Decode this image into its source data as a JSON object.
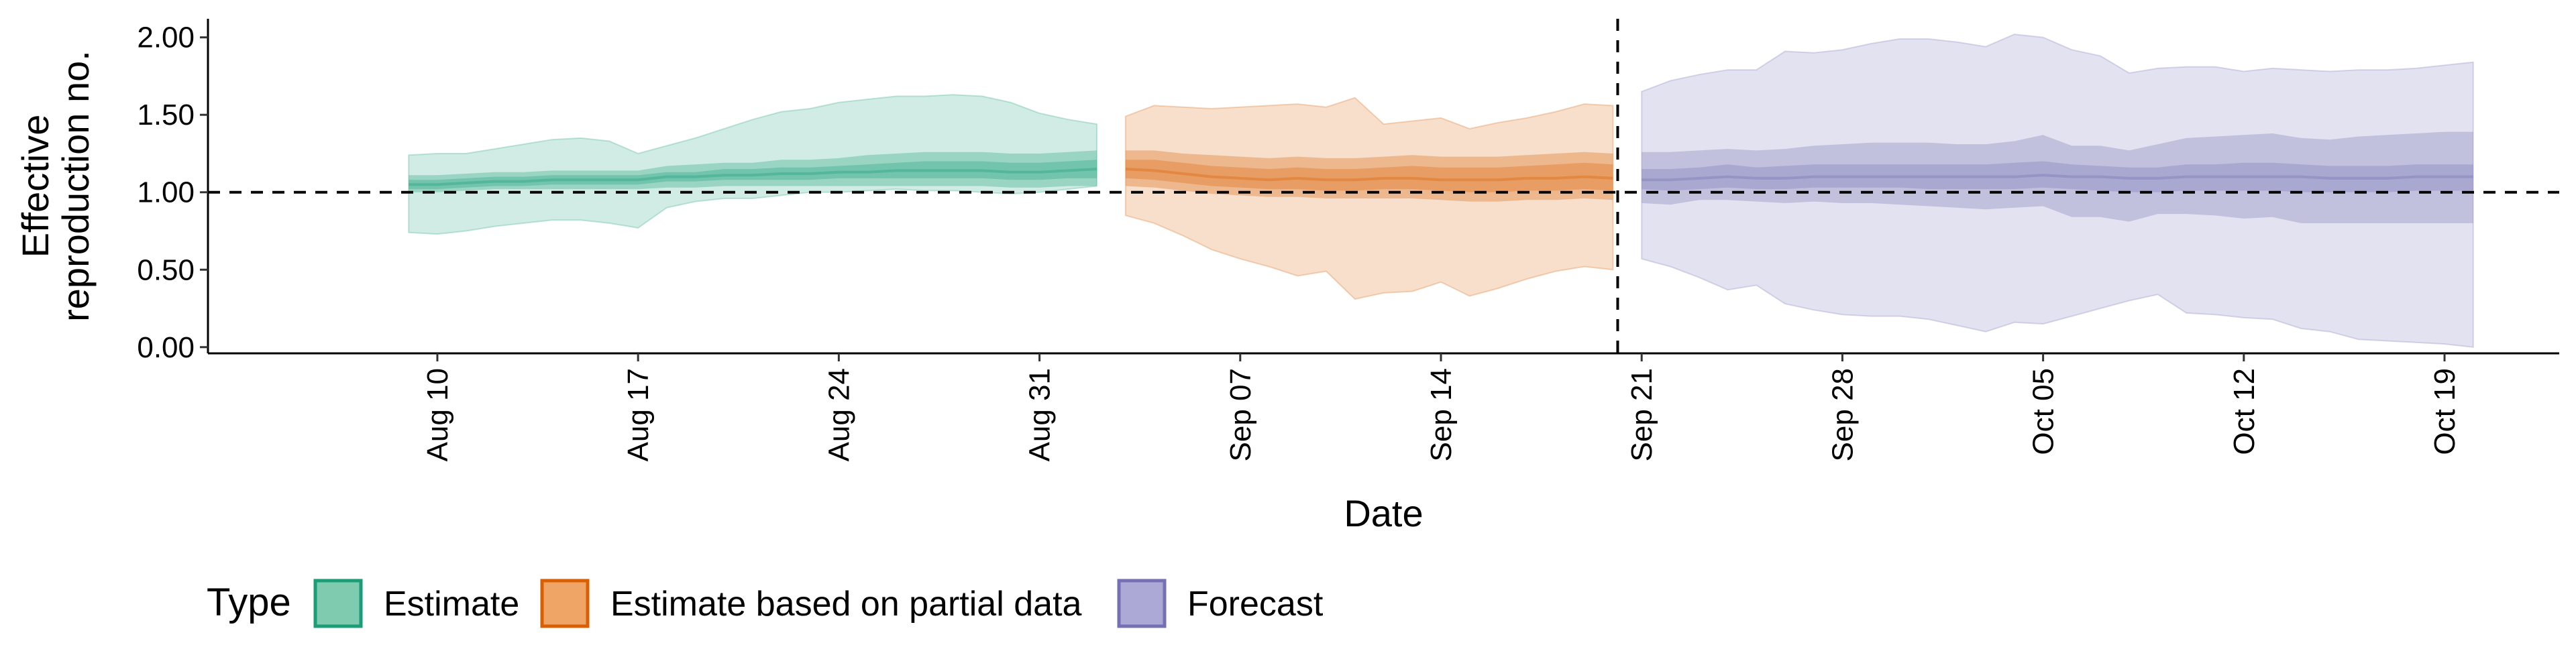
{
  "chart_data": {
    "type": "area",
    "title": "",
    "xlabel": "Date",
    "ylabel": [
      "Effective",
      "reproduction no."
    ],
    "ylim": [
      -0.04,
      2.12
    ],
    "xlim": [
      "2020-08-02",
      "2020-10-23"
    ],
    "yticks": [
      0,
      0.5,
      1,
      1.5,
      2
    ],
    "ytick_labels": [
      "0.00",
      "0.50",
      "1.00",
      "1.50",
      "2.00"
    ],
    "xticks": [
      "2020-08-10",
      "2020-08-17",
      "2020-08-24",
      "2020-08-31",
      "2020-09-07",
      "2020-09-14",
      "2020-09-21",
      "2020-09-28",
      "2020-10-05",
      "2020-10-12",
      "2020-10-19"
    ],
    "xtick_labels": [
      "Aug 10",
      "Aug 17",
      "Aug 24",
      "Aug 31",
      "Sep 07",
      "Sep 14",
      "Sep 21",
      "Sep 28",
      "Oct 05",
      "Oct 12",
      "Oct 19"
    ],
    "reference_line_y": 1.0,
    "reference_line_x": "2020-09-20",
    "legend": {
      "title": "Type",
      "position": "bottom-left",
      "entries": [
        {
          "label": "Estimate",
          "fill": "#7fcbb0",
          "stroke": "#1b9e77"
        },
        {
          "label": "Estimate based on partial data",
          "fill": "#eea566",
          "stroke": "#d95f02"
        },
        {
          "label": "Forecast",
          "fill": "#ada9d6",
          "stroke": "#7570b3"
        }
      ]
    },
    "series": [
      {
        "name": "Estimate",
        "color": "#1b9e77",
        "x": [
          "2020-08-09",
          "2020-08-10",
          "2020-08-11",
          "2020-08-12",
          "2020-08-13",
          "2020-08-14",
          "2020-08-15",
          "2020-08-16",
          "2020-08-17",
          "2020-08-18",
          "2020-08-19",
          "2020-08-20",
          "2020-08-21",
          "2020-08-22",
          "2020-08-23",
          "2020-08-24",
          "2020-08-25",
          "2020-08-26",
          "2020-08-27",
          "2020-08-28",
          "2020-08-29",
          "2020-08-30",
          "2020-08-31",
          "2020-09-01",
          "2020-09-02"
        ],
        "median": [
          1.05,
          1.05,
          1.06,
          1.07,
          1.07,
          1.08,
          1.08,
          1.08,
          1.08,
          1.1,
          1.1,
          1.11,
          1.11,
          1.12,
          1.12,
          1.13,
          1.13,
          1.14,
          1.14,
          1.14,
          1.14,
          1.13,
          1.13,
          1.14,
          1.15
        ],
        "band50": [
          [
            1.02,
            1.08
          ],
          [
            1.02,
            1.08
          ],
          [
            1.03,
            1.09
          ],
          [
            1.04,
            1.1
          ],
          [
            1.04,
            1.1
          ],
          [
            1.05,
            1.11
          ],
          [
            1.05,
            1.11
          ],
          [
            1.05,
            1.11
          ],
          [
            1.05,
            1.11
          ],
          [
            1.07,
            1.13
          ],
          [
            1.07,
            1.13
          ],
          [
            1.08,
            1.15
          ],
          [
            1.08,
            1.15
          ],
          [
            1.08,
            1.16
          ],
          [
            1.08,
            1.16
          ],
          [
            1.09,
            1.17
          ],
          [
            1.09,
            1.18
          ],
          [
            1.09,
            1.19
          ],
          [
            1.09,
            1.2
          ],
          [
            1.09,
            1.2
          ],
          [
            1.09,
            1.2
          ],
          [
            1.08,
            1.19
          ],
          [
            1.08,
            1.19
          ],
          [
            1.09,
            1.2
          ],
          [
            1.09,
            1.21
          ]
        ],
        "band90": [
          [
            1.0,
            1.11
          ],
          [
            1.0,
            1.11
          ],
          [
            1.01,
            1.12
          ],
          [
            1.02,
            1.13
          ],
          [
            1.02,
            1.13
          ],
          [
            1.02,
            1.14
          ],
          [
            1.02,
            1.14
          ],
          [
            1.02,
            1.14
          ],
          [
            1.02,
            1.14
          ],
          [
            1.03,
            1.17
          ],
          [
            1.03,
            1.18
          ],
          [
            1.04,
            1.19
          ],
          [
            1.04,
            1.19
          ],
          [
            1.04,
            1.21
          ],
          [
            1.04,
            1.21
          ],
          [
            1.04,
            1.22
          ],
          [
            1.04,
            1.24
          ],
          [
            1.04,
            1.25
          ],
          [
            1.04,
            1.26
          ],
          [
            1.04,
            1.26
          ],
          [
            1.04,
            1.26
          ],
          [
            1.03,
            1.25
          ],
          [
            1.03,
            1.25
          ],
          [
            1.04,
            1.26
          ],
          [
            1.04,
            1.27
          ]
        ],
        "band95": [
          [
            0.74,
            1.24
          ],
          [
            0.73,
            1.25
          ],
          [
            0.75,
            1.25
          ],
          [
            0.78,
            1.28
          ],
          [
            0.8,
            1.31
          ],
          [
            0.82,
            1.34
          ],
          [
            0.82,
            1.35
          ],
          [
            0.8,
            1.33
          ],
          [
            0.77,
            1.25
          ],
          [
            0.9,
            1.3
          ],
          [
            0.94,
            1.35
          ],
          [
            0.96,
            1.41
          ],
          [
            0.96,
            1.47
          ],
          [
            0.98,
            1.52
          ],
          [
            1.0,
            1.54
          ],
          [
            1.0,
            1.58
          ],
          [
            1.01,
            1.6
          ],
          [
            1.02,
            1.62
          ],
          [
            1.01,
            1.62
          ],
          [
            1.01,
            1.63
          ],
          [
            1.0,
            1.62
          ],
          [
            0.99,
            1.58
          ],
          [
            1.0,
            1.51
          ],
          [
            1.02,
            1.47
          ],
          [
            1.04,
            1.44
          ]
        ]
      },
      {
        "name": "Estimate based on partial data",
        "color": "#d95f02",
        "x": [
          "2020-09-03",
          "2020-09-04",
          "2020-09-05",
          "2020-09-06",
          "2020-09-07",
          "2020-09-08",
          "2020-09-09",
          "2020-09-10",
          "2020-09-11",
          "2020-09-12",
          "2020-09-13",
          "2020-09-14",
          "2020-09-15",
          "2020-09-16",
          "2020-09-17",
          "2020-09-18",
          "2020-09-19",
          "2020-09-20"
        ],
        "median": [
          1.15,
          1.14,
          1.12,
          1.1,
          1.09,
          1.08,
          1.09,
          1.08,
          1.08,
          1.09,
          1.09,
          1.08,
          1.08,
          1.08,
          1.09,
          1.09,
          1.1,
          1.09
        ],
        "band50": [
          [
            1.09,
            1.21
          ],
          [
            1.08,
            1.21
          ],
          [
            1.06,
            1.19
          ],
          [
            1.04,
            1.17
          ],
          [
            1.03,
            1.16
          ],
          [
            1.02,
            1.15
          ],
          [
            1.02,
            1.16
          ],
          [
            1.01,
            1.15
          ],
          [
            1.01,
            1.15
          ],
          [
            1.02,
            1.16
          ],
          [
            1.02,
            1.17
          ],
          [
            1.01,
            1.16
          ],
          [
            1.0,
            1.16
          ],
          [
            1.0,
            1.16
          ],
          [
            1.01,
            1.17
          ],
          [
            1.01,
            1.18
          ],
          [
            1.02,
            1.19
          ],
          [
            1.01,
            1.18
          ]
        ],
        "band90": [
          [
            1.04,
            1.27
          ],
          [
            1.03,
            1.27
          ],
          [
            1.01,
            1.25
          ],
          [
            0.99,
            1.24
          ],
          [
            0.98,
            1.23
          ],
          [
            0.97,
            1.22
          ],
          [
            0.97,
            1.23
          ],
          [
            0.96,
            1.22
          ],
          [
            0.96,
            1.22
          ],
          [
            0.96,
            1.23
          ],
          [
            0.96,
            1.24
          ],
          [
            0.95,
            1.23
          ],
          [
            0.94,
            1.23
          ],
          [
            0.94,
            1.23
          ],
          [
            0.95,
            1.24
          ],
          [
            0.95,
            1.25
          ],
          [
            0.96,
            1.26
          ],
          [
            0.95,
            1.25
          ]
        ],
        "band95": [
          [
            0.85,
            1.49
          ],
          [
            0.8,
            1.56
          ],
          [
            0.72,
            1.55
          ],
          [
            0.63,
            1.54
          ],
          [
            0.57,
            1.55
          ],
          [
            0.52,
            1.56
          ],
          [
            0.46,
            1.57
          ],
          [
            0.49,
            1.55
          ],
          [
            0.31,
            1.61
          ],
          [
            0.35,
            1.44
          ],
          [
            0.36,
            1.46
          ],
          [
            0.42,
            1.48
          ],
          [
            0.33,
            1.41
          ],
          [
            0.38,
            1.45
          ],
          [
            0.44,
            1.48
          ],
          [
            0.49,
            1.52
          ],
          [
            0.52,
            1.57
          ],
          [
            0.5,
            1.56
          ]
        ]
      },
      {
        "name": "Forecast",
        "color": "#7570b3",
        "x": [
          "2020-09-21",
          "2020-09-22",
          "2020-09-23",
          "2020-09-24",
          "2020-09-25",
          "2020-09-26",
          "2020-09-27",
          "2020-09-28",
          "2020-09-29",
          "2020-09-30",
          "2020-10-01",
          "2020-10-02",
          "2020-10-03",
          "2020-10-04",
          "2020-10-05",
          "2020-10-06",
          "2020-10-07",
          "2020-10-08",
          "2020-10-09",
          "2020-10-10",
          "2020-10-11",
          "2020-10-12",
          "2020-10-13",
          "2020-10-14",
          "2020-10-15",
          "2020-10-16",
          "2020-10-17",
          "2020-10-18",
          "2020-10-19",
          "2020-10-20"
        ],
        "median": [
          1.08,
          1.08,
          1.09,
          1.1,
          1.09,
          1.09,
          1.1,
          1.1,
          1.1,
          1.1,
          1.1,
          1.1,
          1.1,
          1.1,
          1.11,
          1.1,
          1.1,
          1.09,
          1.09,
          1.1,
          1.1,
          1.1,
          1.1,
          1.1,
          1.09,
          1.09,
          1.09,
          1.1,
          1.1,
          1.1
        ],
        "band50": [
          [
            1.02,
            1.15
          ],
          [
            1.01,
            1.15
          ],
          [
            1.02,
            1.16
          ],
          [
            1.03,
            1.18
          ],
          [
            1.02,
            1.16
          ],
          [
            1.02,
            1.17
          ],
          [
            1.03,
            1.18
          ],
          [
            1.03,
            1.18
          ],
          [
            1.03,
            1.18
          ],
          [
            1.03,
            1.18
          ],
          [
            1.02,
            1.18
          ],
          [
            1.02,
            1.18
          ],
          [
            1.02,
            1.18
          ],
          [
            1.02,
            1.19
          ],
          [
            1.03,
            1.2
          ],
          [
            1.02,
            1.18
          ],
          [
            1.01,
            1.17
          ],
          [
            1.0,
            1.16
          ],
          [
            1.0,
            1.16
          ],
          [
            1.01,
            1.18
          ],
          [
            1.01,
            1.18
          ],
          [
            1.01,
            1.19
          ],
          [
            1.01,
            1.19
          ],
          [
            1.0,
            1.18
          ],
          [
            1.0,
            1.17
          ],
          [
            1.0,
            1.17
          ],
          [
            1.0,
            1.17
          ],
          [
            1.01,
            1.18
          ],
          [
            1.01,
            1.18
          ],
          [
            1.01,
            1.18
          ]
        ],
        "band90": [
          [
            0.93,
            1.26
          ],
          [
            0.92,
            1.26
          ],
          [
            0.95,
            1.27
          ],
          [
            0.95,
            1.28
          ],
          [
            0.94,
            1.27
          ],
          [
            0.93,
            1.28
          ],
          [
            0.94,
            1.3
          ],
          [
            0.93,
            1.31
          ],
          [
            0.93,
            1.32
          ],
          [
            0.92,
            1.32
          ],
          [
            0.91,
            1.32
          ],
          [
            0.9,
            1.31
          ],
          [
            0.89,
            1.31
          ],
          [
            0.9,
            1.33
          ],
          [
            0.91,
            1.37
          ],
          [
            0.84,
            1.3
          ],
          [
            0.84,
            1.3
          ],
          [
            0.81,
            1.27
          ],
          [
            0.86,
            1.31
          ],
          [
            0.86,
            1.35
          ],
          [
            0.85,
            1.36
          ],
          [
            0.83,
            1.37
          ],
          [
            0.84,
            1.38
          ],
          [
            0.8,
            1.35
          ],
          [
            0.8,
            1.34
          ],
          [
            0.8,
            1.36
          ],
          [
            0.8,
            1.37
          ],
          [
            0.8,
            1.38
          ],
          [
            0.8,
            1.39
          ],
          [
            0.8,
            1.39
          ]
        ],
        "band95": [
          [
            0.57,
            1.65
          ],
          [
            0.52,
            1.72
          ],
          [
            0.45,
            1.76
          ],
          [
            0.37,
            1.79
          ],
          [
            0.4,
            1.79
          ],
          [
            0.28,
            1.91
          ],
          [
            0.24,
            1.9
          ],
          [
            0.21,
            1.92
          ],
          [
            0.2,
            1.96
          ],
          [
            0.2,
            1.99
          ],
          [
            0.18,
            1.99
          ],
          [
            0.14,
            1.97
          ],
          [
            0.1,
            1.94
          ],
          [
            0.16,
            2.02
          ],
          [
            0.15,
            2.0
          ],
          [
            0.2,
            1.92
          ],
          [
            0.25,
            1.88
          ],
          [
            0.3,
            1.77
          ],
          [
            0.34,
            1.8
          ],
          [
            0.22,
            1.81
          ],
          [
            0.21,
            1.81
          ],
          [
            0.19,
            1.78
          ],
          [
            0.18,
            1.8
          ],
          [
            0.12,
            1.79
          ],
          [
            0.1,
            1.78
          ],
          [
            0.05,
            1.79
          ],
          [
            0.04,
            1.79
          ],
          [
            0.03,
            1.8
          ],
          [
            0.02,
            1.82
          ],
          [
            0.0,
            1.84
          ]
        ]
      }
    ]
  }
}
